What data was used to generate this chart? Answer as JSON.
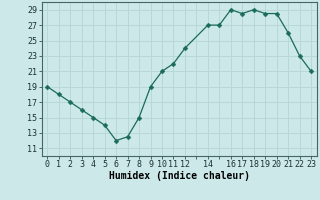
{
  "x": [
    0,
    1,
    2,
    3,
    4,
    5,
    6,
    7,
    8,
    9,
    10,
    11,
    12,
    14,
    15,
    16,
    17,
    18,
    19,
    20,
    21,
    22,
    23
  ],
  "y": [
    19,
    18,
    17,
    16,
    15,
    14,
    12,
    12.5,
    15,
    19,
    21,
    22,
    24,
    27,
    27,
    29,
    28.5,
    29,
    28.5,
    28.5,
    26,
    23,
    21
  ],
  "line_color": "#1a6b5a",
  "marker": "D",
  "marker_size": 2.5,
  "bg_color": "#cce8e8",
  "grid_color": "#b8d8d8",
  "xlabel": "Humidex (Indice chaleur)",
  "xlim": [
    -0.5,
    23.5
  ],
  "ylim": [
    10,
    30
  ],
  "yticks": [
    11,
    13,
    15,
    17,
    19,
    21,
    23,
    25,
    27,
    29
  ],
  "xtick_positions": [
    0,
    1,
    2,
    3,
    4,
    5,
    6,
    7,
    8,
    9,
    10,
    11,
    12,
    13,
    14,
    15,
    16,
    17,
    18,
    19,
    20,
    21,
    22,
    23
  ],
  "xtick_labels": [
    "0",
    "1",
    "2",
    "3",
    "4",
    "5",
    "6",
    "7",
    "8",
    "9",
    "10",
    "11",
    "12",
    "",
    "14",
    "",
    "16",
    "17",
    "18",
    "19",
    "20",
    "21",
    "22",
    "23"
  ],
  "tick_fontsize": 6,
  "xlabel_fontsize": 7
}
